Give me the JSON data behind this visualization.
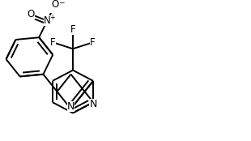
{
  "bg_color": "#ffffff",
  "lw": 1.4,
  "figsize": [
    3.1,
    1.74
  ],
  "dpi": 100,
  "xlim": [
    0,
    310
  ],
  "ylim": [
    0,
    174
  ],
  "fs": 9.5
}
